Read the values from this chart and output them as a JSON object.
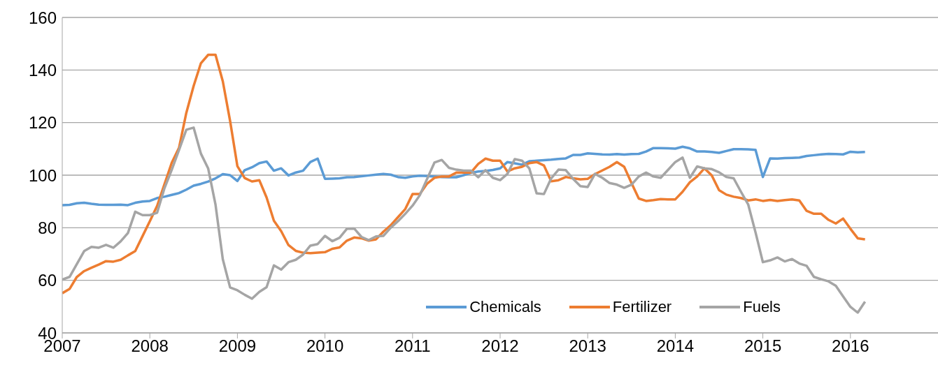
{
  "chart_data": {
    "type": "line",
    "x": [
      "2007-01",
      "2007-02",
      "2007-03",
      "2007-04",
      "2007-05",
      "2007-06",
      "2007-07",
      "2007-08",
      "2007-09",
      "2007-10",
      "2007-11",
      "2007-12",
      "2008-01",
      "2008-02",
      "2008-03",
      "2008-04",
      "2008-05",
      "2008-06",
      "2008-07",
      "2008-08",
      "2008-09",
      "2008-10",
      "2008-11",
      "2008-12",
      "2009-01",
      "2009-02",
      "2009-03",
      "2009-04",
      "2009-05",
      "2009-06",
      "2009-07",
      "2009-08",
      "2009-09",
      "2009-10",
      "2009-11",
      "2009-12",
      "2010-01",
      "2010-02",
      "2010-03",
      "2010-04",
      "2010-05",
      "2010-06",
      "2010-07",
      "2010-08",
      "2010-09",
      "2010-10",
      "2010-11",
      "2010-12",
      "2011-01",
      "2011-02",
      "2011-03",
      "2011-04",
      "2011-05",
      "2011-06",
      "2011-07",
      "2011-08",
      "2011-09",
      "2011-10",
      "2011-11",
      "2011-12",
      "2012-01",
      "2012-02",
      "2012-03",
      "2012-04",
      "2012-05",
      "2012-06",
      "2012-07",
      "2012-08",
      "2012-09",
      "2012-10",
      "2012-11",
      "2012-12",
      "2013-01",
      "2013-02",
      "2013-03",
      "2013-04",
      "2013-05",
      "2013-06",
      "2013-07",
      "2013-08",
      "2013-09",
      "2013-10",
      "2013-11",
      "2013-12",
      "2014-01",
      "2014-02",
      "2014-03",
      "2014-04",
      "2014-05",
      "2014-06",
      "2014-07",
      "2014-08",
      "2014-09",
      "2014-10",
      "2014-11",
      "2014-12",
      "2015-01",
      "2015-02",
      "2015-03",
      "2015-04",
      "2015-05",
      "2015-06",
      "2015-07",
      "2015-08",
      "2015-09",
      "2015-10",
      "2015-11",
      "2015-12",
      "2016-01",
      "2016-02",
      "2016-03"
    ],
    "series": [
      {
        "name": "Chemicals",
        "color": "#5b9bd5",
        "values": [
          88.6,
          88.7,
          89.3,
          89.5,
          89.1,
          88.8,
          88.7,
          88.7,
          88.8,
          88.6,
          89.5,
          90,
          90.2,
          91.3,
          91.8,
          92.5,
          93.2,
          94.5,
          96,
          96.7,
          97.6,
          98.8,
          100.4,
          100,
          97.8,
          101.9,
          103,
          104.6,
          105.2,
          101.7,
          102.6,
          99.9,
          101,
          101.7,
          105,
          106.3,
          98.6,
          98.7,
          98.8,
          99.2,
          99.3,
          99.6,
          99.9,
          100.2,
          100.5,
          100.2,
          99.3,
          99,
          99.5,
          99.8,
          99.7,
          99.5,
          99.3,
          99.2,
          99.2,
          100,
          100.9,
          101.4,
          101.6,
          102,
          102.6,
          105,
          104.5,
          104,
          105.3,
          105.5,
          105.7,
          105.9,
          106.2,
          106.4,
          107.7,
          107.7,
          108.3,
          108.1,
          107.9,
          107.8,
          108,
          107.8,
          108,
          108.1,
          109,
          110.3,
          110.3,
          110.2,
          110.1,
          110.8,
          110.2,
          109,
          109,
          108.8,
          108.5,
          109.2,
          109.9,
          109.9,
          109.8,
          109.6,
          99.3,
          106.4,
          106.3,
          106.5,
          106.6,
          106.7,
          107.3,
          107.6,
          107.9,
          108.1,
          108,
          107.9,
          108.9,
          108.7,
          108.8
        ]
      },
      {
        "name": "Fertilizer",
        "color": "#ed7d31",
        "values": [
          55.1,
          56.7,
          61.3,
          63.5,
          64.8,
          66,
          67.3,
          67.1,
          67.8,
          69.5,
          71.1,
          76.8,
          82.5,
          88.3,
          96.5,
          104.7,
          110.4,
          123.7,
          133.9,
          142.6,
          145.8,
          145.8,
          135.7,
          120.6,
          103.4,
          98.9,
          97.6,
          98.1,
          91.5,
          82.7,
          78.7,
          73.4,
          71.2,
          70.5,
          70.3,
          70.5,
          70.7,
          72,
          72.5,
          75.1,
          76.3,
          76,
          75.1,
          75.6,
          78.5,
          80.9,
          84,
          87.1,
          92.8,
          92.8,
          96.8,
          99,
          99.5,
          99.5,
          101,
          101,
          101,
          104.3,
          106.3,
          105.5,
          105.5,
          101.4,
          102.6,
          103.2,
          104.6,
          105,
          103.7,
          97.7,
          98.1,
          99.3,
          98.8,
          98.4,
          98.6,
          100.4,
          101.8,
          103.2,
          105,
          103.2,
          97,
          91.1,
          90.2,
          90.5,
          90.9,
          90.8,
          90.8,
          93.7,
          97.3,
          99.5,
          102.6,
          99.9,
          94.3,
          92.6,
          91.8,
          91.3,
          90.4,
          90.8,
          90.2,
          90.6,
          90.2,
          90.5,
          90.8,
          90.4,
          86.4,
          85.3,
          85.3,
          83,
          81.6,
          83.5,
          79.6,
          76,
          75.6
        ]
      },
      {
        "name": "Fuels",
        "color": "#a5a5a5",
        "values": [
          60.3,
          61.3,
          66.2,
          71.1,
          72.7,
          72.4,
          73.5,
          72.4,
          74.8,
          78,
          86.1,
          84.8,
          84.8,
          85.7,
          95,
          102,
          109.6,
          117.3,
          118.1,
          108.2,
          102.5,
          88.8,
          68,
          57.3,
          56.2,
          54.5,
          53,
          55.6,
          57.4,
          65.7,
          64.1,
          66.9,
          67.8,
          69.8,
          73.2,
          73.8,
          76.9,
          74.9,
          76.2,
          79.6,
          79.7,
          76.5,
          75.3,
          76.7,
          76.9,
          80,
          82.5,
          85.3,
          88.4,
          92.4,
          98.6,
          104.8,
          105.8,
          102.8,
          102.1,
          101.7,
          101.7,
          99.2,
          101.9,
          99,
          98.1,
          100.5,
          106.1,
          105.5,
          102.6,
          93.1,
          92.8,
          98.8,
          102.1,
          101.9,
          98.6,
          95.8,
          95.5,
          100.5,
          99,
          97,
          96.4,
          95.2,
          96.4,
          99.5,
          101,
          99.5,
          99,
          102,
          105,
          106.7,
          99,
          103.3,
          102.6,
          102.3,
          101.1,
          99.3,
          98.8,
          93.7,
          88.8,
          78.2,
          66.9,
          67.6,
          68.7,
          67.2,
          68.1,
          66.4,
          65.5,
          61.3,
          60.4,
          59.6,
          57.9,
          53.9,
          49.9,
          47.7,
          51.9
        ]
      }
    ],
    "xlim": [
      "2007",
      "2017"
    ],
    "xticks": [
      "2007",
      "2008",
      "2009",
      "2010",
      "2011",
      "2012",
      "2013",
      "2014",
      "2015",
      "2016"
    ],
    "ylim": [
      40,
      160
    ],
    "yticks": [
      40,
      60,
      80,
      100,
      120,
      140,
      160
    ],
    "grid": "y",
    "legend": "bottom right",
    "line_style": "solid"
  }
}
